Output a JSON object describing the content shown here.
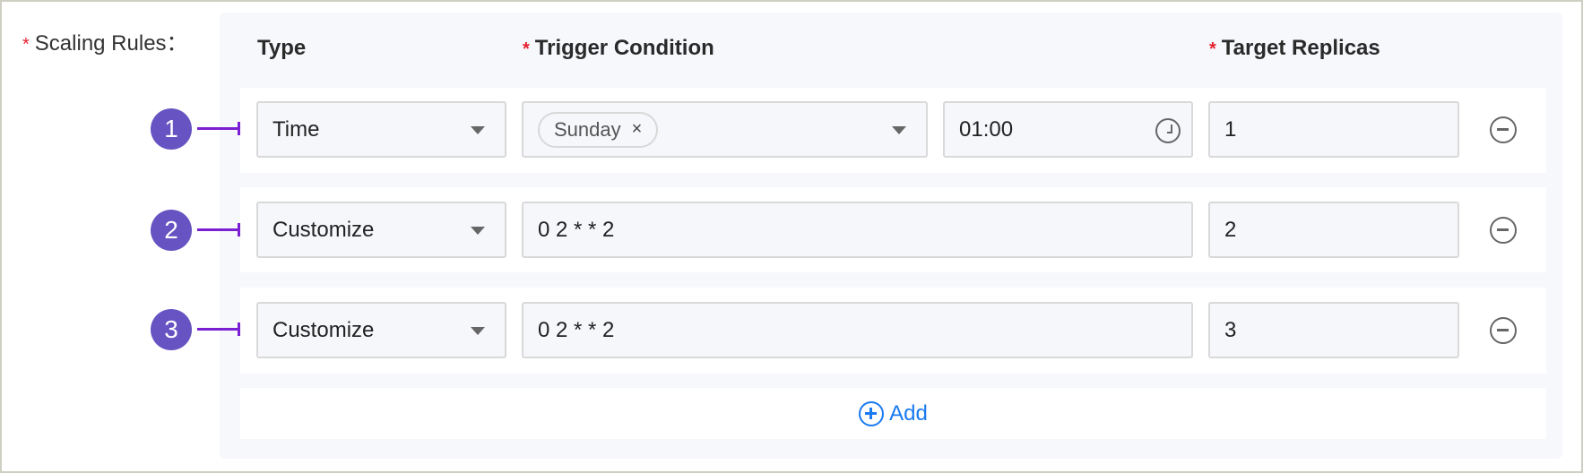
{
  "form": {
    "label": "Scaling Rules",
    "label_suffix": "：",
    "required_mark": "*"
  },
  "headers": {
    "type": "Type",
    "trigger": "Trigger Condition",
    "target": "Target Replicas"
  },
  "rules": [
    {
      "badge": "1",
      "type": "Time",
      "trigger_tags": [
        "Sunday"
      ],
      "tag_remove": "×",
      "time": "01:00",
      "replicas": "1"
    },
    {
      "badge": "2",
      "type": "Customize",
      "trigger": "0 2 * * 2",
      "replicas": "2"
    },
    {
      "badge": "3",
      "type": "Customize",
      "trigger": "0 2 * * 2",
      "replicas": "3"
    }
  ],
  "add_label": "Add",
  "colors": {
    "required": "#e5202e",
    "badge": "#6754c2",
    "connector": "#7a1fd1",
    "link": "#1a7af0"
  }
}
